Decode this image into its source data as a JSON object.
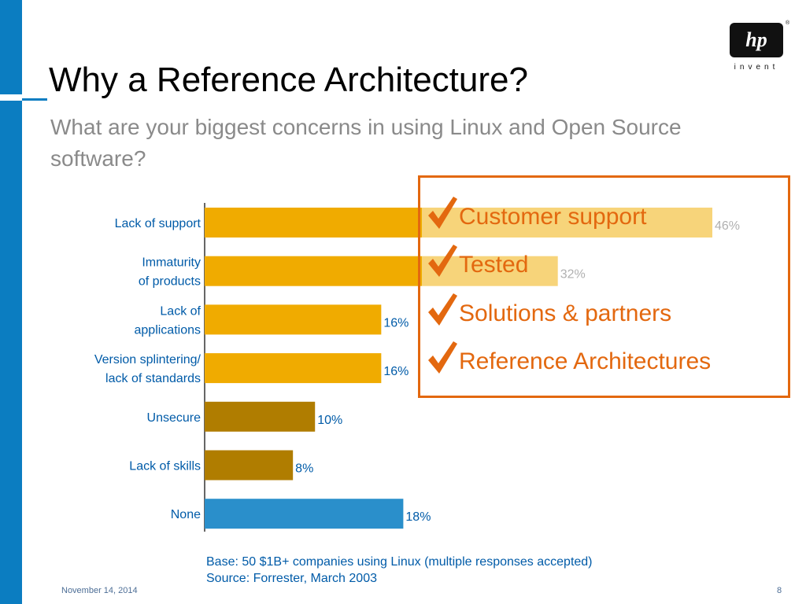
{
  "slide": {
    "title": "Why a Reference Architecture?",
    "subtitle": "What are your biggest concerns in using Linux and Open Source software?",
    "footer_date": "November 14, 2014",
    "page_number": "8",
    "logo_mark": "hp",
    "logo_tagline": "invent",
    "logo_reg": "®",
    "footnote_line1": "Base: 50 $1B+ companies using Linux (multiple responses accepted)",
    "footnote_line2": "Source: Forrester, March 2003"
  },
  "callout": {
    "border_color": "#e3680f",
    "items": [
      {
        "label": "Customer support"
      },
      {
        "label": "Tested"
      },
      {
        "label": "Solutions & partners"
      },
      {
        "label": "Reference Architectures"
      }
    ]
  },
  "chart_data": {
    "type": "bar",
    "orientation": "horizontal",
    "categories": [
      [
        "Lack of support"
      ],
      [
        "Immaturity",
        "of products"
      ],
      [
        "Lack of",
        "applications"
      ],
      [
        "Version splintering/",
        "lack of standards"
      ],
      [
        "Unsecure"
      ],
      [
        "Lack of skills"
      ],
      [
        "None"
      ]
    ],
    "values": [
      46,
      32,
      16,
      16,
      10,
      8,
      18
    ],
    "value_labels": [
      "46%",
      "32%",
      "16%",
      "16%",
      "10%",
      "8%",
      "18%"
    ],
    "bar_colors": [
      "#f0ab00",
      "#f0ab00",
      "#f0ab00",
      "#f0ab00",
      "#b07d00",
      "#b07d00",
      "#2a8fcb"
    ],
    "highlight_color": "#f7d47a",
    "label_color": "#005ba8",
    "muted_label_color": "#b0b0b0",
    "xlim": [
      0,
      46
    ],
    "grid": false,
    "legend": "none"
  }
}
